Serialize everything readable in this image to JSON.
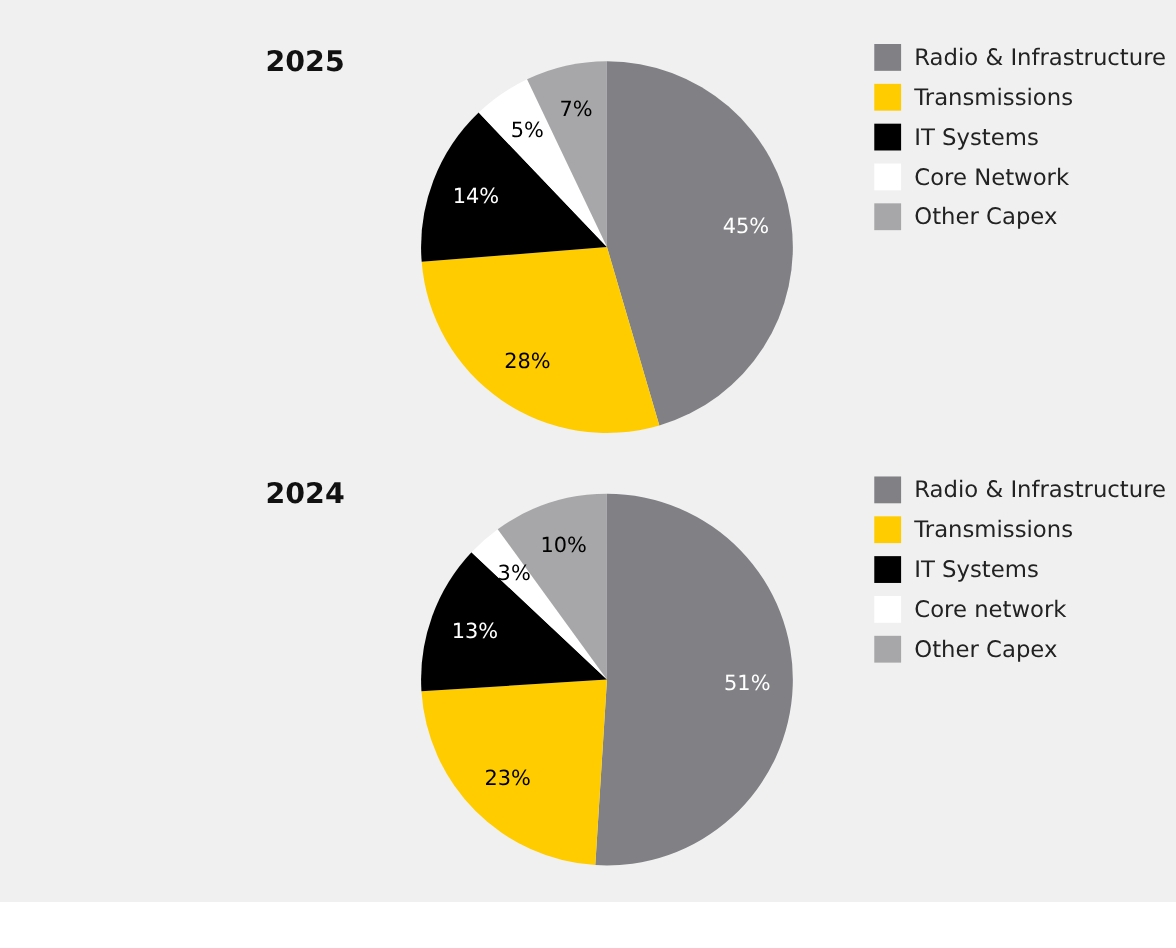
{
  "chart_data": [
    {
      "type": "pie",
      "title": "2025",
      "categories": [
        "Radio & Infrastructure",
        "Transmissions",
        "IT Systems",
        "Core Network",
        "Other Capex"
      ],
      "values": [
        45,
        28,
        14,
        5,
        7
      ],
      "value_labels": [
        "45%",
        "28%",
        "14%",
        "5%",
        "7%"
      ],
      "colors": [
        "#808085",
        "#ffcc00",
        "#000000",
        "#ffffff",
        "#a7a7a9"
      ],
      "legend": "right"
    },
    {
      "type": "pie",
      "title": "2024",
      "categories": [
        "Radio & Infrastructure",
        "Transmissions",
        "IT Systems",
        "Core network",
        "Other Capex"
      ],
      "values": [
        51,
        23,
        13,
        3,
        10
      ],
      "value_labels": [
        "51%",
        "23%",
        "13%",
        "3%",
        "10%"
      ],
      "colors": [
        "#808085",
        "#ffcc00",
        "#000000",
        "#ffffff",
        "#a7a7a9"
      ],
      "legend": "right"
    }
  ]
}
